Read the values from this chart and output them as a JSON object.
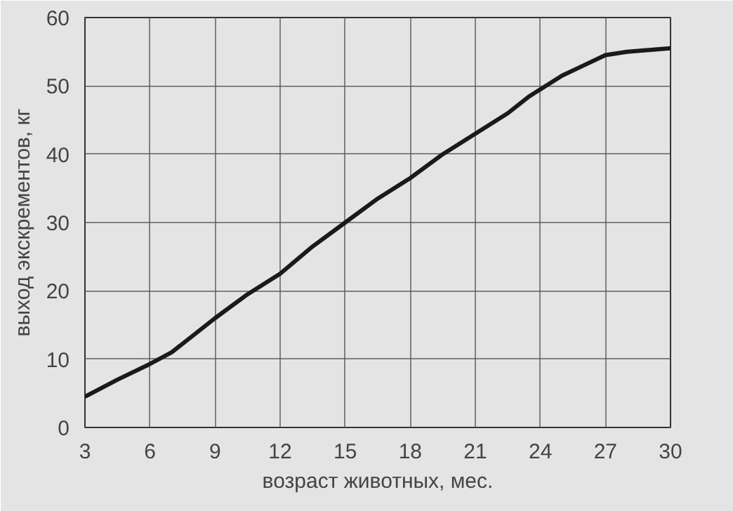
{
  "chart_data": {
    "type": "line",
    "xlabel": "возраст животных, мес.",
    "ylabel": "выход экскрементов, кг",
    "xlim": [
      3,
      30
    ],
    "ylim": [
      0,
      60
    ],
    "xticks": [
      3,
      6,
      9,
      12,
      15,
      18,
      21,
      24,
      27,
      30
    ],
    "yticks": [
      0,
      10,
      20,
      30,
      40,
      50,
      60
    ],
    "grid": true,
    "series": [
      {
        "color": "#1a1a1a",
        "x": [
          3,
          4.5,
          6,
          7,
          9,
          10.5,
          12,
          13.5,
          15,
          16.5,
          18,
          19.5,
          21,
          22.5,
          23.5,
          24,
          25,
          26,
          27,
          28,
          30
        ],
        "values": [
          4.5,
          7,
          9.3,
          11,
          16,
          19.5,
          22.5,
          26.5,
          30,
          33.5,
          36.5,
          40,
          43,
          46,
          48.5,
          49.5,
          51.5,
          53,
          54.5,
          55,
          55.5
        ]
      }
    ]
  }
}
